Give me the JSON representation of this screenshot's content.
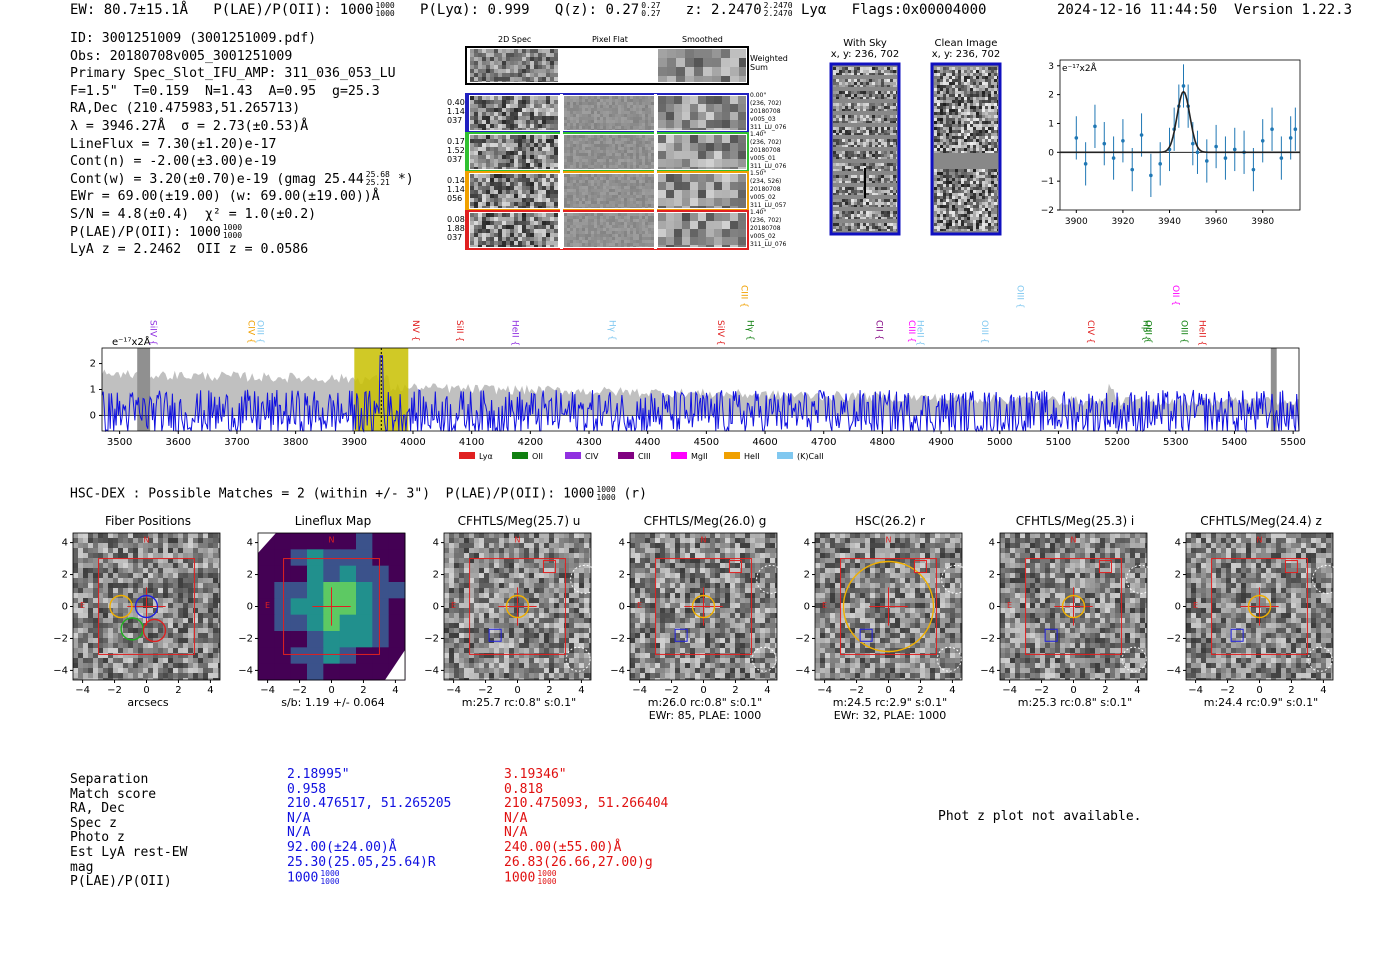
{
  "header": {
    "ew": "EW: 80.7±15.1Å",
    "plae": "P(LAE)/P(OII): 1000",
    "plae_frac_top": "1000",
    "plae_frac_bot": "1000",
    "plya": "P(Lyα): 0.999",
    "qz": "Q(z): 0.27",
    "qz_top": "0.27",
    "qz_bot": "0.27",
    "z": "z: 2.2470",
    "z_top": "2.2470",
    "z_bot": "2.2470",
    "z_line": "Lyα",
    "flags": "Flags:0x00004000",
    "datetime": "2024-12-16 11:44:50",
    "version": "Version 1.22.3"
  },
  "info": {
    "id": "ID: 3001251009 (3001251009.pdf)",
    "obs": "Obs: 20180708v005_3001251009",
    "primary": "Primary Spec_Slot_IFU_AMP: 311_036_053_LU",
    "params": "F=1.5\"  T=0.159  N=1.43  A=0.95  g=25.3",
    "radec": "RA,Dec (210.475983,51.265713)",
    "lambda": "λ = 3946.27Å  σ = 2.73(±0.53)Å",
    "lineflux": "LineFlux = 7.30(±1.20)e-17",
    "contn": "Cont(n) = -2.00(±3.00)e-19",
    "contw": "Cont(w) = 3.20(±0.70)e-19 (gmag 25.44",
    "contw_top": "25.68",
    "contw_bot": "25.21",
    "contw_end": "*)",
    "ewr": "EWr = 69.00(±19.00) (w: 69.00(±19.00))Å",
    "sn": "S/N = 4.8(±0.4)  χ² = 1.0(±0.2)",
    "plae": "P(LAE)/P(OII): 1000",
    "plae_top": "1000",
    "plae_bot": "1000",
    "lya": "LyA z = 2.2462  OII z = 0.0586"
  },
  "cutouts": {
    "col_2d": "2D Spec",
    "col_flat": "Pixel Flat",
    "col_smooth": "Smoothed",
    "weighted": "Weighted\nSum",
    "rows": [
      {
        "left": "0.40\n1.14\n037",
        "right": "0.00\"\n(236, 702)\n20180708\nv005_03\n311_LU_076",
        "color": "#2020c0"
      },
      {
        "left": "0.17\n1.52\n037",
        "right": "1.40\"\n(236, 702)\n20180708\nv005_01\n311_LU_076",
        "color": "#30c030"
      },
      {
        "left": "0.14\n1.14\n056",
        "right": "1.50\"\n(234, 526)\n20180708\nv005_02\n311_LU_057",
        "color": "#f0a000"
      },
      {
        "left": "0.08\n1.88\n037",
        "right": "1.40\"\n(236, 702)\n20180708\nv005_02\n311_LU_076",
        "color": "#e02020"
      }
    ]
  },
  "sky": {
    "with_sky": "With Sky",
    "with_sky_xy": "x, y: 236, 702",
    "clean": "Clean Image",
    "clean_xy": "x, y: 236, 702"
  },
  "zoom_plot": {
    "units": "e⁻¹⁷x2Å",
    "xticks": [
      "3900",
      "3920",
      "3940",
      "3960",
      "3980"
    ],
    "yticks": [
      "3",
      "2",
      "1",
      "0",
      "−1",
      "−2"
    ]
  },
  "full_spectrum": {
    "units": "e⁻¹⁷x2Å",
    "xticks": [
      "3500",
      "3600",
      "3700",
      "3800",
      "3900",
      "4000",
      "4100",
      "4200",
      "4300",
      "4400",
      "4500",
      "4600",
      "4700",
      "4800",
      "4900",
      "5000",
      "5100",
      "5200",
      "5300",
      "5400",
      "5500"
    ],
    "yticks": [
      "2",
      "1",
      "0"
    ],
    "lines": [
      {
        "name": "SiIV",
        "color": "#9030e0"
      },
      {
        "name": "CIV",
        "color": "#f0a000"
      },
      {
        "name": "OIII",
        "color": "#80c8f0"
      },
      {
        "name": "NV",
        "color": "#e02020"
      },
      {
        "name": "SiII",
        "color": "#e02020"
      },
      {
        "name": "HeII",
        "color": "#9030e0"
      },
      {
        "name": "Hγ",
        "color": "#80c8f0"
      },
      {
        "name": "SiIV",
        "color": "#e02020"
      },
      {
        "name": "CIII",
        "color": "#f0a000"
      },
      {
        "name": "Hγ",
        "color": "#108010"
      },
      {
        "name": "CII",
        "color": "#800080"
      },
      {
        "name": "CIII",
        "color": "#ff00ff"
      },
      {
        "name": "HeII",
        "color": "#80c8f0"
      },
      {
        "name": "OIII",
        "color": "#80c8f0"
      },
      {
        "name": "OIII",
        "color": "#80c8f0"
      },
      {
        "name": "CIV",
        "color": "#e02020"
      },
      {
        "name": "Hβ",
        "color": "#108010"
      },
      {
        "name": "OIII",
        "color": "#108010"
      },
      {
        "name": "OII",
        "color": "#ff00ff"
      },
      {
        "name": "OIII",
        "color": "#108010"
      },
      {
        "name": "HeII",
        "color": "#e02020"
      }
    ],
    "legend": [
      {
        "label": "Lyα",
        "color": "#e02020"
      },
      {
        "label": "OII",
        "color": "#108010"
      },
      {
        "label": "CIV",
        "color": "#9030e0"
      },
      {
        "label": "CIII",
        "color": "#800080"
      },
      {
        "label": "MgII",
        "color": "#ff00ff"
      },
      {
        "label": "HeII",
        "color": "#f0a000"
      },
      {
        "label": "(K)CaII",
        "color": "#80c8f0"
      }
    ]
  },
  "hsc": {
    "title": "HSC-DEX : Possible Matches = 2 (within +/- 3\")  P(LAE)/P(OII): 1000",
    "title_top": "1000",
    "title_bot": "1000",
    "title_end": "(r)",
    "panels": [
      {
        "title": "Fiber Positions",
        "cap1": "arcsecs",
        "cap2": ""
      },
      {
        "title": "Lineflux Map",
        "cap1": "s/b: 1.19 +/- 0.064",
        "cap2": ""
      },
      {
        "title": "CFHTLS/Meg(25.7) u",
        "cap1": "m:25.7 rc:0.8\"  s:0.1\"",
        "cap2": ""
      },
      {
        "title": "CFHTLS/Meg(26.0) g",
        "cap1": "m:26.0 rc:0.8\"  s:0.1\"",
        "cap2": "EWr: 85, PLAE: 1000"
      },
      {
        "title": "HSC(26.2) r",
        "cap1": "m:24.5 rc:2.9\"  s:0.1\"",
        "cap2": "EWr: 32, PLAE: 1000"
      },
      {
        "title": "CFHTLS/Meg(25.3) i",
        "cap1": "m:25.3 rc:0.8\"  s:0.1\"",
        "cap2": ""
      },
      {
        "title": "CFHTLS/Meg(24.4) z",
        "cap1": "m:24.4 rc:0.9\"  s:0.1\"",
        "cap2": ""
      }
    ],
    "axis_ticks": [
      "4",
      "2",
      "0",
      "−2",
      "−4"
    ],
    "xaxis_ticks": [
      "−4",
      "−2",
      "0",
      "2",
      "4"
    ],
    "north": "N",
    "east": "E"
  },
  "matches": {
    "labels": "Separation\nMatch score\nRA, Dec\nSpec z\nPhoto z\nEst LyA rest-EW\nmag\nP(LAE)/P(OII)",
    "m1": "2.18995\"\n0.958\n210.476517, 51.265205\nN/A\nN/A\n92.00(±24.00)Å\n25.30(25.05,25.64)R\n1000",
    "m1_top": "1000",
    "m1_bot": "1000",
    "m2": "3.19346\"\n0.818\n210.475093, 51.266404\nN/A\nN/A\n240.00(±55.00)Å\n26.83(26.66,27.00)g\n1000",
    "m2_top": "1000",
    "m2_bot": "1000",
    "photz": "Phot z plot not available."
  },
  "chart_data": [
    {
      "type": "line",
      "title": "",
      "ylabel": "e-17x2A",
      "xlim": [
        3893,
        3996
      ],
      "ylim": [
        -2,
        3.2
      ],
      "x": [
        3900,
        3904,
        3908,
        3912,
        3916,
        3920,
        3924,
        3928,
        3932,
        3936,
        3940,
        3942,
        3944,
        3946,
        3948,
        3950,
        3952,
        3956,
        3960,
        3964,
        3968,
        3972,
        3976,
        3980,
        3984,
        3988,
        3992,
        3994
      ],
      "series": [
        {
          "name": "data",
          "values": [
            0.5,
            -0.4,
            0.9,
            0.3,
            -0.2,
            0.4,
            -0.6,
            0.6,
            -0.8,
            -0.4,
            0.1,
            0.8,
            1.6,
            2.3,
            1.6,
            0.3,
            0.0,
            -0.3,
            0.2,
            -0.2,
            0.1,
            0.0,
            -0.6,
            0.4,
            0.8,
            -0.2,
            0.5,
            0.8
          ]
        },
        {
          "name": "fit",
          "values": [
            0,
            0,
            0,
            0,
            0,
            0,
            0,
            0,
            0,
            0,
            0.1,
            0.6,
            1.6,
            2.1,
            1.6,
            0.5,
            0.1,
            0,
            0,
            0,
            0,
            0,
            0,
            0,
            0,
            0,
            0,
            0
          ]
        }
      ]
    },
    {
      "type": "line",
      "title": "",
      "ylabel": "e-17x2A",
      "xlim": [
        3470,
        5510
      ],
      "ylim": [
        -0.6,
        2.6
      ],
      "x_range": [
        3470,
        5510
      ],
      "series": [
        {
          "name": "spectrum (blue)",
          "description_values": "noise around 0, peak ~2.3 at 3946"
        },
        {
          "name": "sky (grey)",
          "description_values": "envelope ~1.5 at blue end declining to ~0.6"
        }
      ]
    }
  ]
}
